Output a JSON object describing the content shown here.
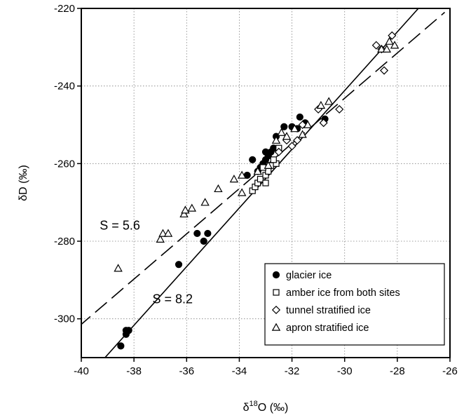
{
  "chart_data": {
    "type": "scatter",
    "title": "",
    "xlabel": {
      "prefix": "δ",
      "sup": "18",
      "suffix": "O (‰)"
    },
    "ylabel": "δD (‰)",
    "xlim": [
      -40,
      -26
    ],
    "ylim": [
      -310,
      -220
    ],
    "xticks": [
      -40,
      -38,
      -36,
      -34,
      -32,
      -30,
      -28,
      -26
    ],
    "yticks": [
      -220,
      -240,
      -260,
      -280,
      -300
    ],
    "grid": true,
    "legend_position": "bottom-right",
    "series": [
      {
        "name": "glacier ice",
        "marker": "filled-circle",
        "points": [
          [
            -38.5,
            -307
          ],
          [
            -38.3,
            -304
          ],
          [
            -38.3,
            -303
          ],
          [
            -38.2,
            -303
          ],
          [
            -36.3,
            -286
          ],
          [
            -35.6,
            -278
          ],
          [
            -35.2,
            -278
          ],
          [
            -35.35,
            -280
          ],
          [
            -33.7,
            -263
          ],
          [
            -33.5,
            -259
          ],
          [
            -33.3,
            -262
          ],
          [
            -33.2,
            -261
          ],
          [
            -33.1,
            -260
          ],
          [
            -33.0,
            -259
          ],
          [
            -33.0,
            -257
          ],
          [
            -32.9,
            -258
          ],
          [
            -32.8,
            -257
          ],
          [
            -32.7,
            -256
          ],
          [
            -32.6,
            -253
          ],
          [
            -32.3,
            -250.5
          ],
          [
            -32.0,
            -250.5
          ],
          [
            -31.8,
            -251
          ],
          [
            -31.7,
            -248
          ],
          [
            -31.5,
            -249.5
          ],
          [
            -30.75,
            -248.5
          ]
        ]
      },
      {
        "name": "amber ice from both sites",
        "marker": "open-square",
        "points": [
          [
            -33.5,
            -267
          ],
          [
            -33.4,
            -266
          ],
          [
            -33.3,
            -265
          ],
          [
            -33.2,
            -264
          ],
          [
            -33.0,
            -265
          ],
          [
            -33.0,
            -263
          ],
          [
            -32.9,
            -262
          ],
          [
            -33.1,
            -261
          ],
          [
            -32.8,
            -260.5
          ],
          [
            -32.6,
            -260
          ],
          [
            -32.7,
            -259
          ],
          [
            -32.5,
            -256
          ]
        ]
      },
      {
        "name": "tunnel stratified ice",
        "marker": "open-diamond",
        "points": [
          [
            -28.8,
            -229.5
          ],
          [
            -28.6,
            -230.5
          ],
          [
            -28.2,
            -227
          ],
          [
            -28.5,
            -236
          ],
          [
            -30.2,
            -246
          ],
          [
            -30.8,
            -249.5
          ],
          [
            -31.0,
            -246
          ],
          [
            -31.6,
            -250
          ],
          [
            -31.8,
            -254
          ],
          [
            -32.0,
            -255.5
          ],
          [
            -32.2,
            -254
          ],
          [
            -32.5,
            -257
          ]
        ]
      },
      {
        "name": "apron stratified ice",
        "marker": "open-triangle",
        "points": [
          [
            -38.6,
            -287
          ],
          [
            -37.0,
            -279.5
          ],
          [
            -36.9,
            -278
          ],
          [
            -36.7,
            -278
          ],
          [
            -36.1,
            -273
          ],
          [
            -36.05,
            -272
          ],
          [
            -35.8,
            -271.5
          ],
          [
            -35.3,
            -270
          ],
          [
            -34.8,
            -266.5
          ],
          [
            -34.2,
            -264
          ],
          [
            -33.9,
            -263
          ],
          [
            -33.9,
            -267.5
          ],
          [
            -33.3,
            -262
          ],
          [
            -32.9,
            -260.5
          ],
          [
            -32.6,
            -254
          ],
          [
            -32.4,
            -252
          ],
          [
            -32.2,
            -253
          ],
          [
            -31.9,
            -251
          ],
          [
            -31.6,
            -252.5
          ],
          [
            -31.4,
            -250
          ],
          [
            -30.9,
            -245
          ],
          [
            -30.6,
            -244
          ],
          [
            -28.6,
            -230.5
          ],
          [
            -28.4,
            -230.5
          ],
          [
            -28.3,
            -228.5
          ],
          [
            -28.1,
            -229.5
          ]
        ]
      }
    ],
    "fit_lines": [
      {
        "style": "solid",
        "x": [
          -39.1,
          -27.2
        ],
        "y": [
          -310,
          -220
        ]
      },
      {
        "style": "dashed",
        "x": [
          -40.1,
          -26.2
        ],
        "y": [
          -302,
          -221
        ]
      }
    ],
    "annotations": [
      {
        "text": "S = 5.6",
        "x": -39.3,
        "y": -277
      },
      {
        "text": "S = 8.2",
        "x": -37.3,
        "y": -296
      }
    ]
  }
}
